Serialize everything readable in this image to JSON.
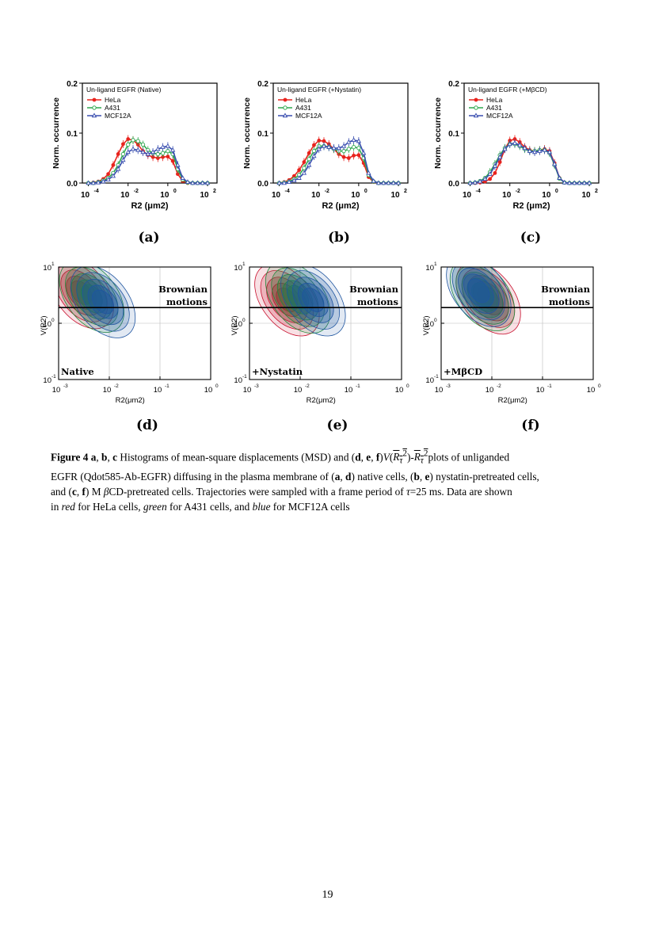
{
  "figure": {
    "histograms": [
      {
        "panel_label": "(a)",
        "chart_data": {
          "type": "line",
          "title": "Un-ligand EGFR (Native)",
          "xlabel": "R2 (μm2)",
          "ylabel": "Norm. occurrence",
          "x_scale": "log",
          "xlim": [
            5e-05,
            300
          ],
          "ylim": [
            0,
            0.2
          ],
          "y_ticks": [
            "0.0",
            "0.1",
            "0.2"
          ],
          "x_tick_exponents": [
            "-4",
            "-2",
            "0",
            "2"
          ],
          "x": [
            0.0001,
            0.000178,
            0.000316,
            0.000562,
            0.001,
            0.00178,
            0.00316,
            0.00562,
            0.01,
            0.0178,
            0.0316,
            0.0562,
            0.1,
            0.178,
            0.316,
            0.562,
            1.0,
            1.78,
            3.16,
            5.62,
            10,
            17.8,
            31.6,
            56.2,
            100
          ],
          "series": [
            {
              "name": "HeLa",
              "color": "#e8231d",
              "marker": "circle",
              "values": [
                0.0,
                0.001,
                0.003,
                0.008,
                0.018,
                0.036,
                0.058,
                0.078,
                0.088,
                0.086,
                0.077,
                0.064,
                0.056,
                0.052,
                0.05,
                0.052,
                0.053,
                0.044,
                0.018,
                0.004,
                0.0,
                0.0,
                0.0,
                0.0,
                0.0
              ]
            },
            {
              "name": "A431",
              "color": "#2fa84f",
              "marker": "open-circle",
              "values": [
                0.0,
                0.0,
                0.002,
                0.005,
                0.01,
                0.02,
                0.036,
                0.058,
                0.077,
                0.086,
                0.084,
                0.077,
                0.066,
                0.06,
                0.058,
                0.06,
                0.064,
                0.058,
                0.028,
                0.007,
                0.001,
                0.0,
                0.0,
                0.0,
                0.0
              ]
            },
            {
              "name": "MCF12A",
              "color": "#3a4fb0",
              "marker": "open-triangle",
              "values": [
                0.0,
                0.0,
                0.001,
                0.003,
                0.007,
                0.014,
                0.028,
                0.046,
                0.062,
                0.068,
                0.066,
                0.062,
                0.058,
                0.062,
                0.068,
                0.072,
                0.074,
                0.066,
                0.036,
                0.01,
                0.002,
                0.0,
                0.0,
                0.0,
                0.0
              ]
            }
          ],
          "legend_position": "top-left"
        }
      },
      {
        "panel_label": "(b)",
        "chart_data": {
          "type": "line",
          "title": "Un-ligand EGFR (+Nystatin)",
          "xlabel": "R2 (μm2)",
          "ylabel": "Norm. occurrence",
          "x_scale": "log",
          "xlim": [
            5e-05,
            300
          ],
          "ylim": [
            0,
            0.2
          ],
          "y_ticks": [
            "0.0",
            "0.1",
            "0.2"
          ],
          "x_tick_exponents": [
            "-4",
            "-2",
            "0",
            "2"
          ],
          "x": [
            0.0001,
            0.000178,
            0.000316,
            0.000562,
            0.001,
            0.00178,
            0.00316,
            0.00562,
            0.01,
            0.0178,
            0.0316,
            0.0562,
            0.1,
            0.178,
            0.316,
            0.562,
            1.0,
            1.78,
            3.16,
            5.62,
            10,
            17.8,
            31.6,
            56.2,
            100
          ],
          "series": [
            {
              "name": "HeLa",
              "color": "#e8231d",
              "marker": "circle",
              "values": [
                0.0,
                0.002,
                0.006,
                0.014,
                0.026,
                0.042,
                0.06,
                0.076,
                0.085,
                0.084,
                0.078,
                0.068,
                0.058,
                0.052,
                0.05,
                0.055,
                0.056,
                0.04,
                0.012,
                0.002,
                0.0,
                0.0,
                0.0,
                0.0,
                0.0
              ]
            },
            {
              "name": "A431",
              "color": "#2fa84f",
              "marker": "open-circle",
              "values": [
                0.0,
                0.001,
                0.003,
                0.008,
                0.016,
                0.03,
                0.048,
                0.064,
                0.074,
                0.074,
                0.072,
                0.068,
                0.064,
                0.064,
                0.068,
                0.072,
                0.07,
                0.05,
                0.016,
                0.003,
                0.0,
                0.0,
                0.0,
                0.0,
                0.0
              ]
            },
            {
              "name": "MCF12A",
              "color": "#3a4fb0",
              "marker": "open-triangle",
              "values": [
                0.0,
                0.0,
                0.002,
                0.005,
                0.01,
                0.02,
                0.036,
                0.054,
                0.068,
                0.074,
                0.072,
                0.07,
                0.07,
                0.074,
                0.082,
                0.086,
                0.084,
                0.06,
                0.02,
                0.004,
                0.0,
                0.0,
                0.0,
                0.0,
                0.0
              ]
            }
          ],
          "legend_position": "top-left"
        }
      },
      {
        "panel_label": "(c)",
        "chart_data": {
          "type": "line",
          "title": "Un-ligand EGFR (+MβCD)",
          "xlabel": "R2 (μm2)",
          "ylabel": "Norm. occurrence",
          "x_scale": "log",
          "xlim": [
            5e-05,
            300
          ],
          "ylim": [
            0,
            0.2
          ],
          "y_ticks": [
            "0.0",
            "0.1",
            "0.2"
          ],
          "x_tick_exponents": [
            "-4",
            "-2",
            "0",
            "2"
          ],
          "x": [
            0.0001,
            0.000178,
            0.000316,
            0.000562,
            0.001,
            0.00178,
            0.00316,
            0.00562,
            0.01,
            0.0178,
            0.0316,
            0.0562,
            0.1,
            0.178,
            0.316,
            0.562,
            1.0,
            1.78,
            3.16,
            5.62,
            10,
            17.8,
            31.6,
            56.2,
            100
          ],
          "series": [
            {
              "name": "HeLa",
              "color": "#e8231d",
              "marker": "circle",
              "values": [
                0.0,
                0.0,
                0.001,
                0.003,
                0.008,
                0.02,
                0.042,
                0.068,
                0.085,
                0.088,
                0.082,
                0.072,
                0.066,
                0.064,
                0.066,
                0.068,
                0.064,
                0.04,
                0.01,
                0.001,
                0.0,
                0.0,
                0.0,
                0.0,
                0.0
              ]
            },
            {
              "name": "A431",
              "color": "#2fa84f",
              "marker": "open-circle",
              "values": [
                0.0,
                0.001,
                0.004,
                0.01,
                0.022,
                0.038,
                0.056,
                0.07,
                0.078,
                0.078,
                0.074,
                0.068,
                0.064,
                0.064,
                0.066,
                0.066,
                0.06,
                0.036,
                0.009,
                0.001,
                0.0,
                0.0,
                0.0,
                0.0,
                0.0
              ]
            },
            {
              "name": "MCF12A",
              "color": "#3a4fb0",
              "marker": "open-triangle",
              "values": [
                0.0,
                0.001,
                0.003,
                0.008,
                0.018,
                0.034,
                0.052,
                0.068,
                0.078,
                0.08,
                0.076,
                0.07,
                0.064,
                0.062,
                0.064,
                0.066,
                0.062,
                0.038,
                0.01,
                0.001,
                0.0,
                0.0,
                0.0,
                0.0,
                0.0
              ]
            }
          ],
          "legend_position": "top-left"
        }
      }
    ],
    "contours": [
      {
        "panel_label": "(d)",
        "chart_data": {
          "type": "contour",
          "condition_label": "Native",
          "annotation": [
            "Brownian",
            "motions"
          ],
          "x_scale": "log",
          "y_scale": "log",
          "xlim": [
            0.001,
            1
          ],
          "ylim": [
            0.1,
            10
          ],
          "x_tick_exponents": [
            "-3",
            "-2",
            "-1",
            "0"
          ],
          "y_tick_exponents": [
            "-1",
            "0",
            "1"
          ],
          "ylabel": "V(R2)",
          "xlabel": "R2(μm2)",
          "reference_line_y": 1.9,
          "series": [
            {
              "name": "HeLa",
              "color": "#c8102e",
              "center": [
                0.0028,
                3.5
              ]
            },
            {
              "name": "A431",
              "color": "#1f8a3a",
              "center": [
                0.0045,
                3.0
              ]
            },
            {
              "name": "MCF12A",
              "color": "#1f55a0",
              "center": [
                0.0075,
                2.4
              ]
            }
          ]
        }
      },
      {
        "panel_label": "(e)",
        "chart_data": {
          "type": "contour",
          "condition_label": "+Nystatin",
          "annotation": [
            "Brownian",
            "motions"
          ],
          "x_scale": "log",
          "y_scale": "log",
          "xlim": [
            0.001,
            1
          ],
          "ylim": [
            0.1,
            10
          ],
          "x_tick_exponents": [
            "-3",
            "-2",
            "-1",
            "0"
          ],
          "y_tick_exponents": [
            "-1",
            "0",
            "1"
          ],
          "ylabel": "V(R2)",
          "xlabel": "R2(μm2)",
          "reference_line_y": 1.9,
          "series": [
            {
              "name": "HeLa",
              "color": "#c8102e",
              "center": [
                0.0055,
                2.6
              ]
            },
            {
              "name": "A431",
              "color": "#1f8a3a",
              "center": [
                0.009,
                2.9
              ]
            },
            {
              "name": "MCF12A",
              "color": "#1f55a0",
              "center": [
                0.018,
                2.6
              ]
            }
          ]
        }
      },
      {
        "panel_label": "(f)",
        "chart_data": {
          "type": "contour",
          "condition_label": "+MβCD",
          "annotation": [
            "Brownian",
            "motions"
          ],
          "x_scale": "log",
          "y_scale": "log",
          "xlim": [
            0.001,
            1
          ],
          "ylim": [
            0.1,
            10
          ],
          "x_tick_exponents": [
            "-3",
            "-2",
            "-1",
            "0"
          ],
          "y_tick_exponents": [
            "-1",
            "0",
            "1"
          ],
          "ylabel": "V(R2)",
          "xlabel": "R2(μm2)",
          "reference_line_y": 1.9,
          "series": [
            {
              "name": "HeLa",
              "color": "#c8102e",
              "center": [
                0.0085,
                2.8
              ]
            },
            {
              "name": "A431",
              "color": "#1f8a3a",
              "center": [
                0.0065,
                3.2
              ]
            },
            {
              "name": "MCF12A",
              "color": "#1f55a0",
              "center": [
                0.0055,
                3.8
              ]
            }
          ]
        }
      }
    ]
  },
  "caption": {
    "lead": "Figure 4",
    "line1_a": "a",
    "line1_b": "b",
    "line1_c": "c",
    "line1_text1": " Histograms of mean-square displacements (MSD) and (",
    "line1_d": "d",
    "line1_e": "e",
    "line1_f": "f",
    "line1_text2": ")",
    "line1_v": "V",
    "line1_r1": "R",
    "line1_sub1": "τ",
    "line1_sup1": "2",
    "line1_r2": "R",
    "line1_sub2": "τ",
    "line1_sup2": "2",
    "line1_text3": "plots of unliganded",
    "line2": "EGFR (Qdot585-Ab-EGFR) diffusing in the plasma membrane of (",
    "line2_a": "a",
    "line2_d": "d",
    "line2_text2": ") native cells, (",
    "line2_b": "b",
    "line2_e": "e",
    "line2_text3": ") nystatin-pretreated cells,",
    "line3_start": "and (",
    "line3_c": "c",
    "line3_f": "f",
    "line3_text": ") M ",
    "line3_beta": "β",
    "line3_text2": "CD-pretreated cells. Trajectories were sampled with a frame period of ",
    "line3_tau": "τ",
    "line3_text3": "=25 ms. Data are shown",
    "line4_start": "in ",
    "line4_red": "red",
    "line4_t1": " for HeLa cells, ",
    "line4_green": "green",
    "line4_t2": " for A431 cells, and ",
    "line4_blue": "blue",
    "line4_t3": " for MCF12A cells"
  },
  "page_number": "19"
}
